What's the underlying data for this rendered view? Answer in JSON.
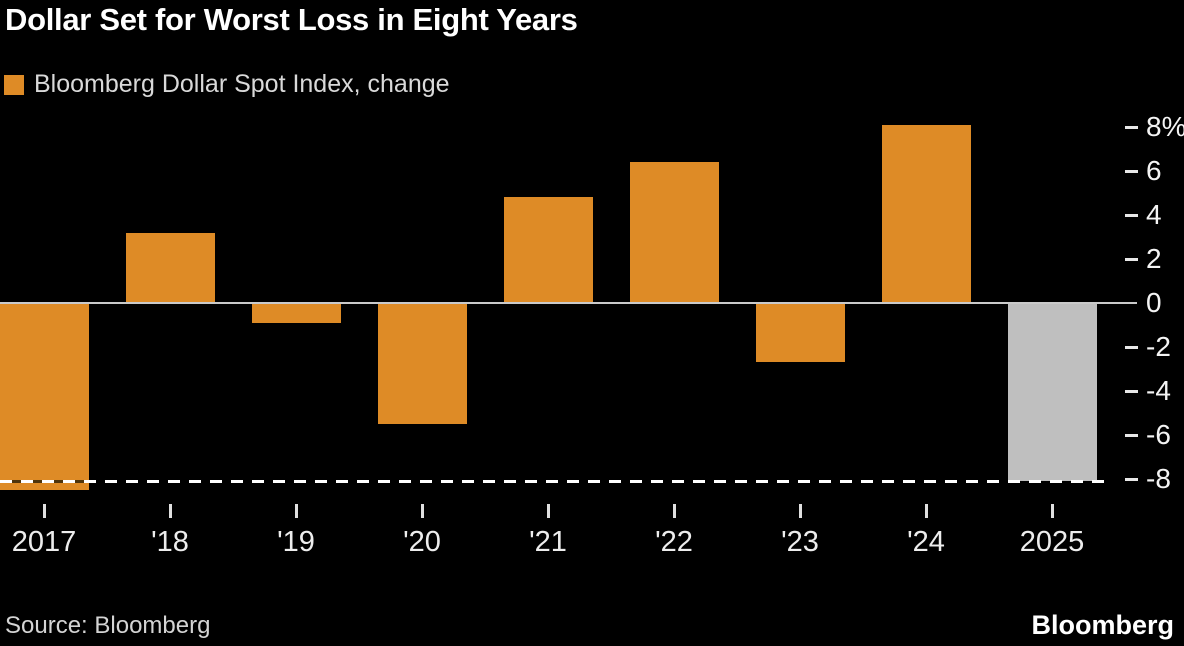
{
  "header": {
    "title": "Dollar Set for Worst Loss in Eight Years"
  },
  "chart_data": {
    "type": "bar",
    "title": "Dollar Set for Worst Loss in Eight Years",
    "legend": "Bloomberg Dollar Spot Index, change",
    "categories": [
      "2017",
      "'18",
      "'19",
      "'20",
      "'21",
      "'22",
      "'23",
      "'24",
      "2025"
    ],
    "values": [
      -8.5,
      3.2,
      -0.9,
      -5.5,
      4.8,
      6.4,
      -2.7,
      8.1,
      -8.1
    ],
    "unit": "%",
    "ylim": [
      -8.5,
      8.5
    ],
    "yticks": [
      8,
      6,
      4,
      2,
      0,
      -2,
      -4,
      -6,
      -8
    ],
    "ytick_labels": [
      "8%",
      "6",
      "4",
      "2",
      "0",
      "-2",
      "-4",
      "-6",
      "-8"
    ],
    "yaxis_side": "right",
    "grid": false,
    "legend_position": "top-left",
    "highlight_index": 8,
    "reference_line": {
      "value": -8.1,
      "style": "dashed",
      "color": "#ffffff"
    },
    "colors": {
      "background": "#000000",
      "bar": "#de8b26",
      "highlight_bar": "#bfbfbf",
      "zero_line": "#cacaca",
      "reference_dash_on_bar_gap": "#4e340c"
    }
  },
  "footer": {
    "source": "Source: Bloomberg",
    "logo": "Bloomberg"
  }
}
